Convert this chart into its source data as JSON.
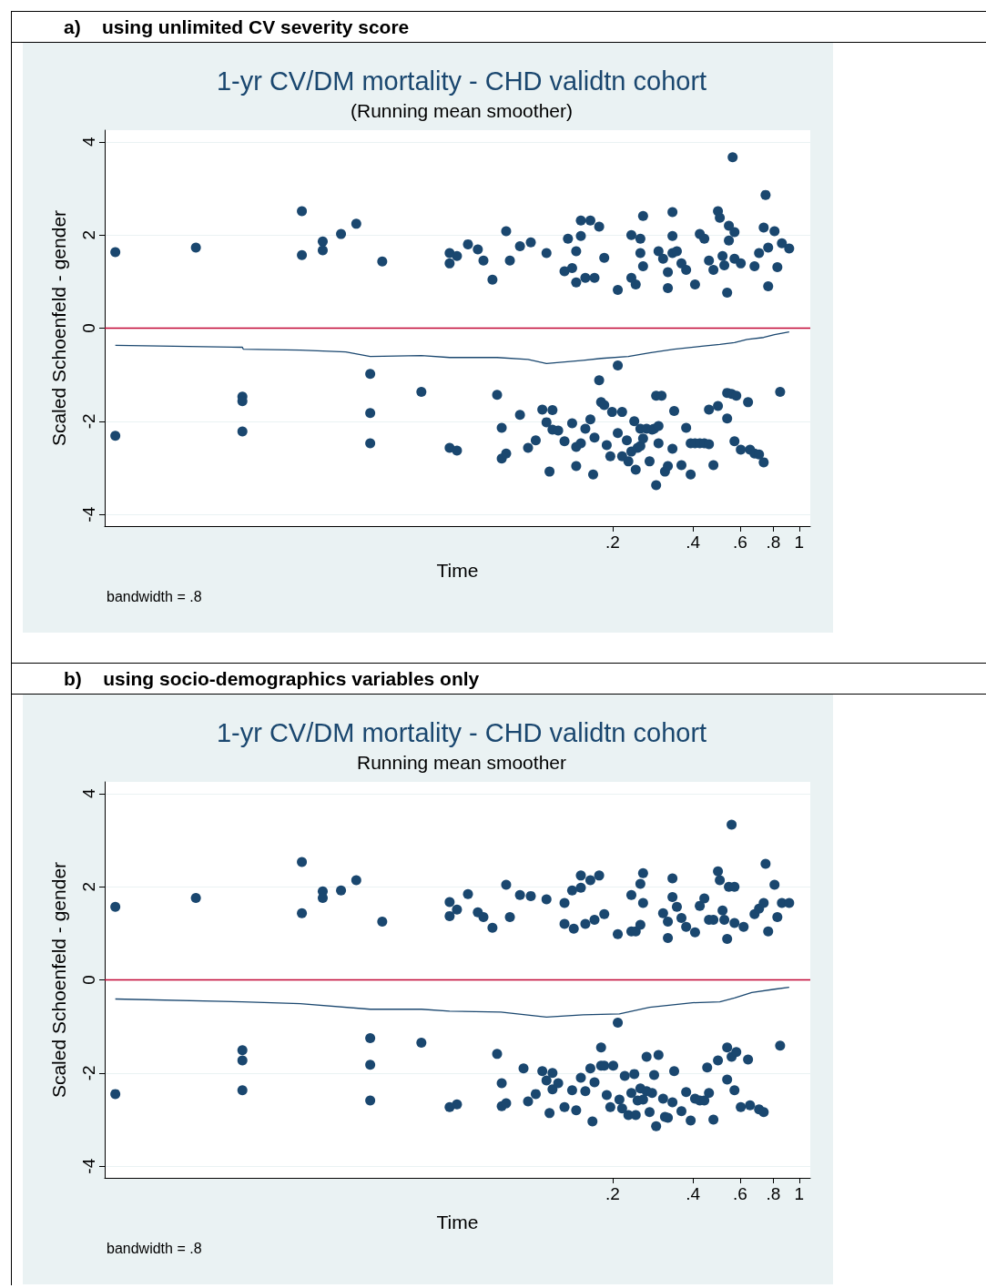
{
  "chart_data": [
    {
      "type": "scatter",
      "title": "1-yr CV/DM mortality - CHD validtn cohort",
      "subtitle": "(Running mean smoother)",
      "xlabel": "Time",
      "ylabel": "Scaled Schoenfeld - gender",
      "annotations": [
        "a)    using unlimited CV severity score",
        "bandwidth = .8"
      ],
      "log": "x",
      "xlim": [
        0.0025,
        1.1
      ],
      "xticks": [
        {
          "value": 0.2,
          "label": ".2"
        },
        {
          "value": 0.4,
          "label": ".4"
        },
        {
          "value": 0.6,
          "label": ".6"
        },
        {
          "value": 0.8,
          "label": ".8"
        },
        1
      ],
      "ylim": [
        -4.25,
        4.25
      ],
      "yticks": [
        -4,
        -2,
        0,
        2,
        4
      ],
      "grid": "y",
      "marker": "circle",
      "ref_lines": [
        {
          "axis": "y",
          "value": 0,
          "color": "#c10534"
        }
      ],
      "series": [
        {
          "type": "scatter",
          "color": "#1a476f",
          "x": [
            0.00274,
            0.00549,
            0.0137,
            0.0137,
            0.0164,
            0.0164,
            0.0192,
            0.0219,
            0.0274,
            0.049,
            0.049,
            0.0522,
            0.0574,
            0.0625,
            0.0656,
            0.0709,
            0.0798,
            0.0824,
            0.0899,
            0.0987,
            0.113,
            0.132,
            0.136,
            0.146,
            0.152,
            0.152,
            0.141,
            0.146,
            0.158,
            0.165,
            0.171,
            0.178,
            0.186,
            0.209,
            0.235,
            0.235,
            0.244,
            0.254,
            0.254,
            0.26,
            0.26,
            0.297,
            0.309,
            0.322,
            0.322,
            0.335,
            0.335,
            0.335,
            0.348,
            0.362,
            0.377,
            0.407,
            0.424,
            0.441,
            0.459,
            0.477,
            0.496,
            0.504,
            0.516,
            0.524,
            0.537,
            0.545,
            0.545,
            0.563,
            0.572,
            0.572,
            0.604,
            0.68,
            0.707,
            0.736,
            0.748,
            0.765,
            0.765,
            0.808,
            0.828,
            0.861,
            0.917,
            0.00274,
            0.0082,
            0.0082,
            0.0082,
            0.0247,
            0.0247,
            0.0247,
            0.0384,
            0.049,
            0.0522,
            0.0738,
            0.0768,
            0.0768,
            0.0798,
            0.0899,
            0.0964,
            0.103,
            0.109,
            0.113,
            0.116,
            0.119,
            0.119,
            0.125,
            0.132,
            0.141,
            0.146,
            0.146,
            0.152,
            0.158,
            0.165,
            0.169,
            0.171,
            0.178,
            0.181,
            0.186,
            0.19,
            0.196,
            0.199,
            0.209,
            0.209,
            0.217,
            0.217,
            0.226,
            0.229,
            0.235,
            0.241,
            0.244,
            0.248,
            0.254,
            0.254,
            0.26,
            0.268,
            0.275,
            0.281,
            0.286,
            0.291,
            0.297,
            0.297,
            0.305,
            0.291,
            0.314,
            0.322,
            0.335,
            0.34,
            0.362,
            0.377,
            0.392,
            0.392,
            0.407,
            0.424,
            0.441,
            0.459,
            0.459,
            0.477,
            0.496,
            0.537,
            0.537,
            0.558,
            0.572,
            0.581,
            0.604,
            0.643,
            0.654,
            0.68,
            0.707,
            0.736,
            0.848
          ],
          "values": [
            1.63,
            1.73,
            2.51,
            1.57,
            1.86,
            1.67,
            2.02,
            2.24,
            1.43,
            1.61,
            1.39,
            1.55,
            1.8,
            1.69,
            1.45,
            1.04,
            2.08,
            1.45,
            1.76,
            1.84,
            1.61,
            1.22,
            1.92,
            1.65,
            1.98,
            2.31,
            1.29,
            0.98,
            1.08,
            2.31,
            1.08,
            2.18,
            1.51,
            0.82,
            1.08,
            2,
            0.94,
            1.92,
            1.61,
            2.41,
            1.33,
            1.65,
            1.49,
            1.2,
            0.86,
            1.98,
            2.49,
            1.61,
            1.65,
            1.39,
            1.25,
            0.94,
            2.02,
            1.92,
            1.45,
            1.25,
            2.51,
            2.37,
            1.55,
            1.35,
            0.76,
            2.2,
            1.88,
            3.67,
            2.06,
            1.49,
            1.39,
            1.33,
            1.61,
            2.16,
            2.86,
            1.73,
            0.9,
            2.08,
            1.31,
            1.82,
            1.71,
            -2.31,
            -1.47,
            -1.57,
            -2.22,
            -0.98,
            -1.82,
            -2.47,
            -1.37,
            -2.57,
            -2.63,
            -1.43,
            -2.14,
            -2.8,
            -2.69,
            -1.86,
            -2.57,
            -2.41,
            -1.75,
            -2.02,
            -3.08,
            -1.76,
            -2.18,
            -2.2,
            -2.43,
            -2.04,
            -2.55,
            -2.96,
            -2.47,
            -2.16,
            -1.96,
            -3.14,
            -2.35,
            -1.12,
            -1.59,
            -1.65,
            -2.51,
            -2.75,
            -1.8,
            -0.8,
            -2.25,
            -2.75,
            -1.8,
            -2.41,
            -2.86,
            -2.65,
            -2,
            -3.04,
            -2.57,
            -2.16,
            -2.53,
            -2.37,
            -2.16,
            -2.86,
            -2.18,
            -2.16,
            -1.45,
            -2.1,
            -2.47,
            -1.45,
            -3.37,
            -3.08,
            -2.96,
            -2.59,
            -1.78,
            -2.94,
            -2.14,
            -2.47,
            -3.14,
            -2.47,
            -2.47,
            -2.47,
            -2.49,
            -1.75,
            -2.94,
            -1.67,
            -1.39,
            -1.94,
            -1.41,
            -2.43,
            -1.45,
            -2.61,
            -1.59,
            -2.61,
            -2.69,
            -2.71,
            -2.88,
            -1.37
          ]
        },
        {
          "type": "line",
          "color": "#1a476f",
          "marker": "none",
          "x": [
            0.00274,
            0.0082,
            0.00826,
            0.0135,
            0.02,
            0.0247,
            0.0384,
            0.049,
            0.0738,
            0.0964,
            0.113,
            0.155,
            0.181,
            0.229,
            0.275,
            0.34,
            0.431,
            0.504,
            0.572,
            0.638,
            0.736,
            0.808,
            0.917
          ],
          "values": [
            -0.37,
            -0.41,
            -0.45,
            -0.47,
            -0.51,
            -0.61,
            -0.59,
            -0.63,
            -0.63,
            -0.67,
            -0.76,
            -0.69,
            -0.65,
            -0.61,
            -0.53,
            -0.45,
            -0.39,
            -0.35,
            -0.31,
            -0.24,
            -0.2,
            -0.14,
            -0.08
          ]
        }
      ]
    },
    {
      "type": "scatter",
      "title": "1-yr CV/DM mortality - CHD validtn cohort",
      "subtitle": "Running mean smoother",
      "xlabel": "Time",
      "ylabel": "Scaled Schoenfeld - gender",
      "annotations": [
        "b)    using socio-demographics variables only",
        "bandwidth = .8"
      ],
      "log": "x",
      "xlim": [
        0.0025,
        1.1
      ],
      "xticks": [
        {
          "value": 0.2,
          "label": ".2"
        },
        {
          "value": 0.4,
          "label": ".4"
        },
        {
          "value": 0.6,
          "label": ".6"
        },
        {
          "value": 0.8,
          "label": ".8"
        },
        1
      ],
      "ylim": [
        -4.25,
        4.25
      ],
      "yticks": [
        -4,
        -2,
        0,
        2,
        4
      ],
      "grid": "y",
      "marker": "circle",
      "ref_lines": [
        {
          "axis": "y",
          "value": 0,
          "color": "#c10534"
        }
      ],
      "series": [
        {
          "type": "scatter",
          "color": "#1a476f",
          "x": [
            0.00274,
            0.00549,
            0.0137,
            0.0137,
            0.0164,
            0.0164,
            0.0192,
            0.0219,
            0.0274,
            0.049,
            0.049,
            0.0522,
            0.0574,
            0.0625,
            0.0656,
            0.0709,
            0.0798,
            0.0824,
            0.0899,
            0.0987,
            0.113,
            0.132,
            0.132,
            0.141,
            0.143,
            0.152,
            0.152,
            0.158,
            0.165,
            0.171,
            0.178,
            0.186,
            0.209,
            0.235,
            0.235,
            0.244,
            0.254,
            0.254,
            0.26,
            0.26,
            0.309,
            0.322,
            0.322,
            0.335,
            0.335,
            0.348,
            0.362,
            0.377,
            0.407,
            0.424,
            0.441,
            0.459,
            0.477,
            0.496,
            0.504,
            0.516,
            0.524,
            0.537,
            0.545,
            0.558,
            0.572,
            0.572,
            0.619,
            0.68,
            0.707,
            0.736,
            0.748,
            0.765,
            0.808,
            0.828,
            0.861,
            0.917,
            0.00274,
            0.0082,
            0.0082,
            0.0082,
            0.0247,
            0.0247,
            0.0247,
            0.0384,
            0.049,
            0.0522,
            0.0738,
            0.0768,
            0.0768,
            0.0798,
            0.0927,
            0.0964,
            0.103,
            0.109,
            0.113,
            0.116,
            0.119,
            0.119,
            0.125,
            0.132,
            0.141,
            0.146,
            0.152,
            0.158,
            0.165,
            0.168,
            0.171,
            0.181,
            0.181,
            0.186,
            0.19,
            0.196,
            0.201,
            0.209,
            0.212,
            0.217,
            0.222,
            0.229,
            0.235,
            0.241,
            0.244,
            0.248,
            0.254,
            0.26,
            0.268,
            0.275,
            0.281,
            0.286,
            0.291,
            0.268,
            0.297,
            0.309,
            0.314,
            0.322,
            0.335,
            0.34,
            0.362,
            0.377,
            0.392,
            0.407,
            0.424,
            0.441,
            0.459,
            0.452,
            0.477,
            0.496,
            0.537,
            0.537,
            0.558,
            0.572,
            0.581,
            0.604,
            0.643,
            0.654,
            0.707,
            0.736,
            0.848
          ],
          "values": [
            1.57,
            1.76,
            2.53,
            1.43,
            1.9,
            1.76,
            1.92,
            2.14,
            1.25,
            1.67,
            1.37,
            1.51,
            1.84,
            1.45,
            1.35,
            1.12,
            2.04,
            1.35,
            1.82,
            1.8,
            1.73,
            1.65,
            1.2,
            1.92,
            1.1,
            2.24,
            1.98,
            1.2,
            2.14,
            1.29,
            2.24,
            1.41,
            0.98,
            1.04,
            1.82,
            1.04,
            2.06,
            1.18,
            2.29,
            1.65,
            1.43,
            1.25,
            0.9,
            2.18,
            1.78,
            1.57,
            1.33,
            1.14,
            1.02,
            1.59,
            1.75,
            1.29,
            1.29,
            2.33,
            2.14,
            1.49,
            1.29,
            0.88,
            2,
            3.33,
            2,
            1.22,
            1.14,
            1.41,
            1.53,
            1.65,
            2.49,
            1.04,
            2.04,
            1.35,
            1.65,
            1.65,
            -2.45,
            -1.51,
            -1.73,
            -2.37,
            -1.25,
            -1.82,
            -2.59,
            -1.35,
            -2.73,
            -2.67,
            -1.59,
            -2.22,
            -2.71,
            -2.65,
            -1.9,
            -2.61,
            -2.45,
            -1.96,
            -2.16,
            -2.86,
            -2,
            -2.35,
            -2.22,
            -2.73,
            -2.37,
            -2.8,
            -2.1,
            -2.39,
            -1.9,
            -3.04,
            -2.2,
            -1.45,
            -1.84,
            -1.84,
            -2.47,
            -2.73,
            -1.84,
            -0.92,
            -2.57,
            -2.76,
            -2.06,
            -2.9,
            -2.43,
            -2.02,
            -2.9,
            -2.59,
            -2.33,
            -2.57,
            -2.39,
            -2.84,
            -2.43,
            -2.04,
            -3.14,
            -1.65,
            -1.61,
            -2.55,
            -2.94,
            -2.96,
            -2.63,
            -1.96,
            -2.82,
            -2.41,
            -3.02,
            -2.55,
            -2.59,
            -2.59,
            -2.43,
            -1.88,
            -3,
            -1.73,
            -1.45,
            -2.14,
            -1.65,
            -2.37,
            -1.55,
            -2.73,
            -1.71,
            -2.69,
            -2.78,
            -2.84,
            -1.41
          ]
        },
        {
          "type": "line",
          "color": "#1a476f",
          "marker": "none",
          "x": [
            0.00274,
            0.0082,
            0.0135,
            0.0247,
            0.0384,
            0.049,
            0.0762,
            0.113,
            0.155,
            0.212,
            0.275,
            0.398,
            0.504,
            0.572,
            0.664,
            0.808,
            0.917
          ],
          "values": [
            -0.41,
            -0.47,
            -0.51,
            -0.63,
            -0.63,
            -0.67,
            -0.69,
            -0.8,
            -0.75,
            -0.73,
            -0.59,
            -0.49,
            -0.47,
            -0.39,
            -0.27,
            -0.2,
            -0.16
          ]
        }
      ]
    }
  ]
}
